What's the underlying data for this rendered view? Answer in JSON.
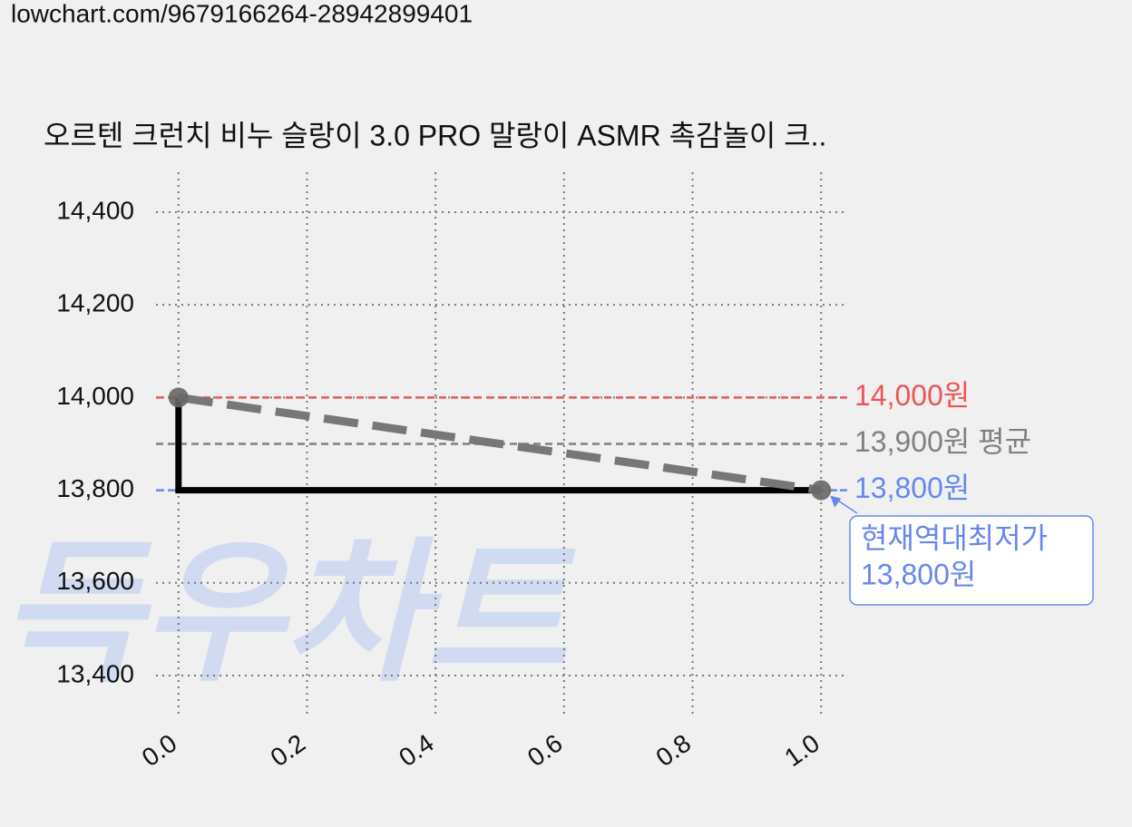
{
  "url": "lowchart.com/9679166264-28942899401",
  "chart_data": {
    "type": "line",
    "title": "오르텐 크런치 비누 슬랑이 3.0 PRO 말랑이 ASMR 촉감놀이 크..",
    "watermark": "득우차트",
    "xlim": [
      -0.035,
      1.042
    ],
    "ylim": [
      13312,
      14486
    ],
    "xticks": [
      {
        "value": 0,
        "label": "0.0"
      },
      {
        "value": 0.2,
        "label": "0.2"
      },
      {
        "value": 0.4,
        "label": "0.4"
      },
      {
        "value": 0.6,
        "label": "0.6"
      },
      {
        "value": 0.8,
        "label": "0.8"
      },
      {
        "value": 1,
        "label": "1.0"
      }
    ],
    "yticks": [
      {
        "value": 13400,
        "label": "13,400"
      },
      {
        "value": 13600,
        "label": "13,600"
      },
      {
        "value": 13800,
        "label": "13,800"
      },
      {
        "value": 14000,
        "label": "14,000"
      },
      {
        "value": 14200,
        "label": "14,200"
      },
      {
        "value": 14400,
        "label": "14,400"
      }
    ],
    "grid": true,
    "series": [
      {
        "x": [
          0,
          1
        ],
        "values": [
          14000,
          13800
        ],
        "color": "#000000",
        "style": "step"
      },
      {
        "x": [
          0,
          1
        ],
        "values": [
          14000,
          13800
        ],
        "color": "#777777",
        "style": "dashed"
      }
    ],
    "ref_lines": [
      {
        "value": 14000,
        "label": "14,000원",
        "color": "#ee5555"
      },
      {
        "value": 13900,
        "label": "13,900원 평균",
        "color": "#808080"
      },
      {
        "value": 13800,
        "label": "13,800원",
        "color": "#6688ee"
      }
    ],
    "annotation": {
      "lines": [
        "현재역대최저가",
        "13,800원"
      ],
      "x": 1,
      "value": 13800,
      "color": "#6688ee"
    }
  }
}
